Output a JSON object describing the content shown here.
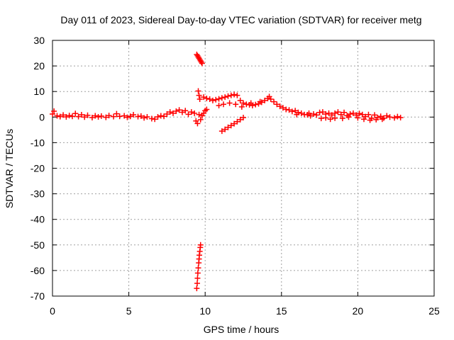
{
  "chart_data": {
    "type": "scatter",
    "title": "Day 011 of 2023, Sidereal Day-to-day VTEC variation (SDTVAR) for receiver metg",
    "xlabel": "GPS time / hours",
    "ylabel": "SDTVAR / TECUs",
    "xlim": [
      0,
      25
    ],
    "ylim": [
      -70,
      30
    ],
    "xticks": [
      0,
      5,
      10,
      15,
      20,
      25
    ],
    "yticks": [
      30,
      20,
      10,
      0,
      -10,
      -20,
      -30,
      -40,
      -50,
      -60,
      -70
    ],
    "grid": true,
    "marker": "+",
    "series": [
      {
        "name": "SDTVAR",
        "color": "#ff0000",
        "points": [
          [
            0.0,
            1.2
          ],
          [
            0.1,
            2.3
          ],
          [
            0.3,
            0.5
          ],
          [
            0.5,
            0.2
          ],
          [
            0.7,
            0.8
          ],
          [
            0.9,
            0.1
          ],
          [
            1.1,
            0.6
          ],
          [
            1.3,
            0.3
          ],
          [
            1.5,
            1.4
          ],
          [
            1.7,
            0.2
          ],
          [
            1.9,
            0.9
          ],
          [
            2.1,
            0.0
          ],
          [
            2.3,
            0.7
          ],
          [
            2.6,
            -0.2
          ],
          [
            2.8,
            0.5
          ],
          [
            3.0,
            0.1
          ],
          [
            3.2,
            0.4
          ],
          [
            3.5,
            -0.1
          ],
          [
            3.7,
            0.6
          ],
          [
            4.0,
            0.2
          ],
          [
            4.2,
            1.3
          ],
          [
            4.4,
            0.3
          ],
          [
            4.7,
            0.5
          ],
          [
            4.9,
            -0.1
          ],
          [
            5.1,
            0.3
          ],
          [
            5.3,
            0.9
          ],
          [
            5.6,
            0.2
          ],
          [
            5.8,
            0.4
          ],
          [
            6.0,
            -0.3
          ],
          [
            6.2,
            0.1
          ],
          [
            6.5,
            -0.6
          ],
          [
            6.7,
            -0.8
          ],
          [
            6.9,
            0.1
          ],
          [
            7.1,
            0.5
          ],
          [
            7.3,
            0.3
          ],
          [
            7.5,
            1.2
          ],
          [
            7.7,
            2.0
          ],
          [
            7.9,
            1.5
          ],
          [
            8.1,
            2.3
          ],
          [
            8.3,
            2.8
          ],
          [
            8.5,
            1.9
          ],
          [
            8.7,
            2.5
          ],
          [
            8.9,
            1.1
          ],
          [
            9.1,
            2.0
          ],
          [
            9.3,
            1.5
          ],
          [
            9.4,
            -1.5
          ],
          [
            9.5,
            -2.5
          ],
          [
            9.6,
            1.0
          ],
          [
            9.45,
            24.5
          ],
          [
            9.5,
            24.0
          ],
          [
            9.55,
            23.5
          ],
          [
            9.6,
            23.0
          ],
          [
            9.65,
            22.5
          ],
          [
            9.7,
            22.0
          ],
          [
            9.75,
            21.5
          ],
          [
            9.8,
            21.0
          ],
          [
            9.55,
            10.2
          ],
          [
            9.6,
            8.5
          ],
          [
            9.65,
            7.0
          ],
          [
            9.7,
            -1.0
          ],
          [
            9.8,
            0.5
          ],
          [
            9.9,
            1.5
          ],
          [
            10.0,
            2.5
          ],
          [
            10.1,
            3.0
          ],
          [
            9.9,
            7.8
          ],
          [
            10.1,
            7.3
          ],
          [
            10.3,
            7.0
          ],
          [
            10.5,
            6.5
          ],
          [
            10.7,
            6.8
          ],
          [
            10.9,
            7.1
          ],
          [
            11.1,
            7.5
          ],
          [
            11.3,
            7.8
          ],
          [
            11.5,
            8.2
          ],
          [
            11.7,
            8.5
          ],
          [
            11.9,
            8.8
          ],
          [
            12.1,
            8.5
          ],
          [
            12.3,
            6.5
          ],
          [
            12.5,
            5.5
          ],
          [
            12.7,
            5.0
          ],
          [
            12.9,
            4.8
          ],
          [
            13.1,
            4.5
          ],
          [
            13.3,
            4.9
          ],
          [
            13.5,
            5.2
          ],
          [
            13.7,
            5.8
          ],
          [
            13.9,
            6.5
          ],
          [
            14.1,
            7.3
          ],
          [
            14.3,
            7.0
          ],
          [
            14.5,
            6.0
          ],
          [
            14.7,
            5.0
          ],
          [
            14.9,
            4.2
          ],
          [
            15.1,
            3.6
          ],
          [
            15.3,
            3.0
          ],
          [
            15.5,
            2.8
          ],
          [
            15.7,
            2.2
          ],
          [
            15.9,
            2.5
          ],
          [
            16.1,
            1.8
          ],
          [
            16.3,
            1.5
          ],
          [
            16.5,
            1.0
          ],
          [
            16.7,
            0.9
          ],
          [
            16.9,
            0.5
          ],
          [
            17.1,
            1.2
          ],
          [
            17.3,
            0.8
          ],
          [
            17.5,
            1.8
          ],
          [
            17.7,
            2.0
          ],
          [
            17.9,
            1.2
          ],
          [
            18.1,
            1.5
          ],
          [
            18.3,
            0.8
          ],
          [
            18.5,
            1.5
          ],
          [
            18.7,
            2.0
          ],
          [
            18.9,
            1.0
          ],
          [
            19.1,
            1.8
          ],
          [
            19.3,
            0.6
          ],
          [
            19.5,
            1.2
          ],
          [
            19.7,
            1.5
          ],
          [
            19.9,
            0.8
          ],
          [
            20.1,
            1.4
          ],
          [
            20.3,
            1.0
          ],
          [
            20.5,
            0.2
          ],
          [
            20.7,
            1.0
          ],
          [
            20.9,
            -0.5
          ],
          [
            21.1,
            0.8
          ],
          [
            21.3,
            -0.2
          ],
          [
            21.5,
            0.3
          ],
          [
            21.7,
            -0.4
          ],
          [
            21.9,
            0.5
          ],
          [
            22.1,
            0.0
          ],
          [
            22.4,
            -0.3
          ],
          [
            22.6,
            0.2
          ],
          [
            22.8,
            -0.2
          ],
          [
            17.6,
            -0.5
          ],
          [
            17.9,
            -0.3
          ],
          [
            18.2,
            -0.8
          ],
          [
            18.5,
            -0.4
          ],
          [
            19.0,
            -0.5
          ],
          [
            19.4,
            0.0
          ],
          [
            20.0,
            -0.3
          ],
          [
            20.4,
            -0.8
          ],
          [
            20.8,
            -1.2
          ],
          [
            21.2,
            -1.0
          ],
          [
            21.6,
            -0.8
          ],
          [
            10.9,
            4.5
          ],
          [
            11.2,
            5.0
          ],
          [
            11.6,
            5.5
          ],
          [
            12.0,
            5.0
          ],
          [
            12.4,
            4.0
          ],
          [
            13.0,
            5.5
          ],
          [
            13.6,
            6.0
          ],
          [
            14.2,
            8.0
          ],
          [
            16.0,
            1.0
          ],
          [
            16.8,
            1.5
          ],
          [
            11.1,
            -5.5
          ],
          [
            11.3,
            -4.8
          ],
          [
            11.5,
            -4.0
          ],
          [
            11.7,
            -3.3
          ],
          [
            11.9,
            -2.6
          ],
          [
            12.1,
            -1.8
          ],
          [
            12.3,
            -1.0
          ],
          [
            12.5,
            -0.2
          ],
          [
            9.45,
            -67.0
          ],
          [
            9.48,
            -65.0
          ],
          [
            9.5,
            -63.0
          ],
          [
            9.52,
            -61.0
          ],
          [
            9.55,
            -59.0
          ],
          [
            9.58,
            -57.0
          ],
          [
            9.6,
            -55.5
          ],
          [
            9.62,
            -54.0
          ],
          [
            9.65,
            -52.5
          ],
          [
            9.68,
            -51.0
          ],
          [
            9.7,
            -50.0
          ]
        ]
      }
    ]
  }
}
